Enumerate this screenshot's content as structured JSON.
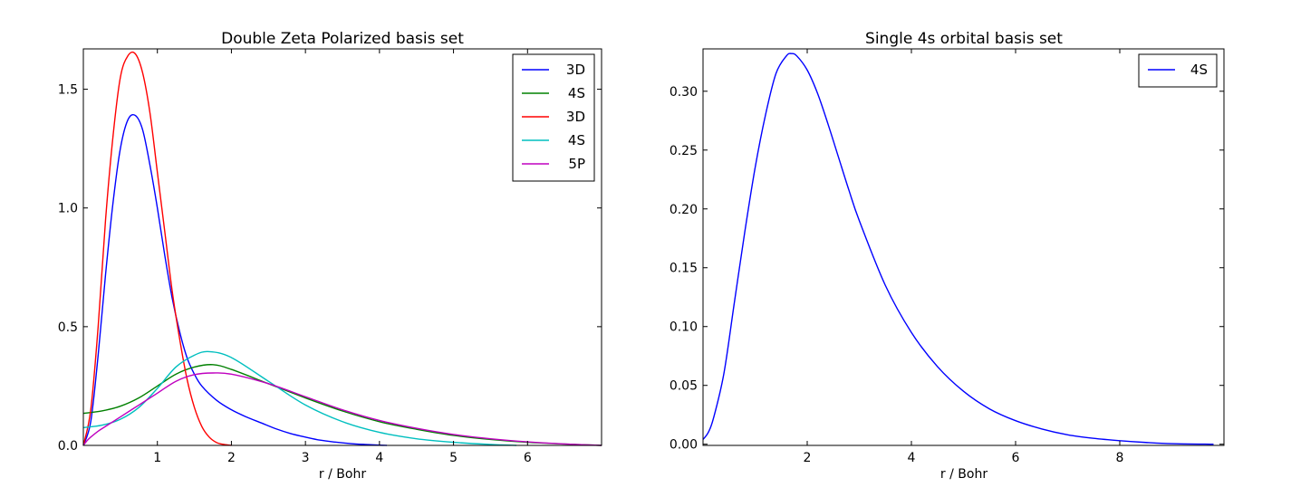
{
  "chart_data": [
    {
      "type": "line",
      "title": "Double Zeta Polarized basis set",
      "xlabel": "r / Bohr",
      "ylabel": "",
      "xlim": [
        0,
        7
      ],
      "ylim": [
        0,
        1.67
      ],
      "xticks": [
        1,
        2,
        3,
        4,
        5,
        6
      ],
      "xtick_labels": [
        "1",
        "2",
        "3",
        "4",
        "5",
        "6"
      ],
      "yticks": [
        0.0,
        0.5,
        1.0,
        1.5
      ],
      "ytick_labels": [
        "0.0",
        "0.5",
        "1.0",
        "1.5"
      ],
      "legend_position": "top-right",
      "series": [
        {
          "name": "3D",
          "color": "#0000ff",
          "x": [
            0,
            0.1,
            0.2,
            0.3,
            0.4,
            0.5,
            0.6,
            0.7,
            0.8,
            0.9,
            1.0,
            1.1,
            1.2,
            1.3,
            1.4,
            1.5,
            1.6,
            1.8,
            2.0,
            2.2,
            2.4,
            2.6,
            2.8,
            3.0,
            3.2,
            3.4,
            3.6,
            3.8,
            4.0,
            4.1
          ],
          "y": [
            0,
            0.1,
            0.38,
            0.72,
            1.02,
            1.25,
            1.37,
            1.39,
            1.33,
            1.18,
            1.0,
            0.8,
            0.62,
            0.48,
            0.37,
            0.3,
            0.25,
            0.19,
            0.15,
            0.12,
            0.095,
            0.07,
            0.05,
            0.035,
            0.022,
            0.014,
            0.008,
            0.004,
            0.001,
            0.0
          ]
        },
        {
          "name": "4S",
          "color": "#008000",
          "x": [
            0,
            0.25,
            0.5,
            0.75,
            1.0,
            1.25,
            1.5,
            1.75,
            2.0,
            2.5,
            3.0,
            3.5,
            4.0,
            4.5,
            5.0,
            5.5,
            6.0,
            6.5,
            7.0
          ],
          "y": [
            0.135,
            0.145,
            0.165,
            0.2,
            0.25,
            0.3,
            0.33,
            0.34,
            0.32,
            0.26,
            0.2,
            0.145,
            0.1,
            0.068,
            0.042,
            0.025,
            0.013,
            0.006,
            0.0
          ]
        },
        {
          "name": "3D",
          "color": "#ff0000",
          "x": [
            0,
            0.1,
            0.2,
            0.3,
            0.4,
            0.5,
            0.6,
            0.7,
            0.8,
            0.9,
            1.0,
            1.1,
            1.2,
            1.3,
            1.4,
            1.5,
            1.6,
            1.7,
            1.8,
            1.9,
            2.0
          ],
          "y": [
            0,
            0.15,
            0.5,
            0.95,
            1.3,
            1.55,
            1.64,
            1.65,
            1.57,
            1.4,
            1.15,
            0.9,
            0.65,
            0.45,
            0.28,
            0.16,
            0.08,
            0.035,
            0.012,
            0.004,
            0.0
          ]
        },
        {
          "name": "4S",
          "color": "#00bfbf",
          "x": [
            0,
            0.25,
            0.5,
            0.75,
            1.0,
            1.25,
            1.5,
            1.7,
            2.0,
            2.5,
            3.0,
            3.5,
            4.0,
            4.5,
            5.0,
            5.5,
            5.85
          ],
          "y": [
            0.075,
            0.085,
            0.11,
            0.16,
            0.24,
            0.33,
            0.38,
            0.395,
            0.37,
            0.27,
            0.17,
            0.1,
            0.055,
            0.028,
            0.013,
            0.004,
            0.0
          ]
        },
        {
          "name": "5P",
          "color": "#bf00bf",
          "x": [
            0,
            0.05,
            0.1,
            0.2,
            0.3,
            0.5,
            0.75,
            1.0,
            1.25,
            1.5,
            1.75,
            2.0,
            2.5,
            3.0,
            3.5,
            4.0,
            4.5,
            5.0,
            5.5,
            6.0,
            6.5,
            7.0
          ],
          "y": [
            0,
            0.02,
            0.035,
            0.06,
            0.08,
            0.12,
            0.17,
            0.22,
            0.27,
            0.298,
            0.305,
            0.3,
            0.26,
            0.205,
            0.15,
            0.105,
            0.072,
            0.046,
            0.028,
            0.015,
            0.006,
            0.0
          ]
        }
      ]
    },
    {
      "type": "line",
      "title": "Single 4s orbital basis set",
      "xlabel": "r / Bohr",
      "ylabel": "",
      "xlim": [
        0,
        10
      ],
      "ylim": [
        -0.001,
        0.336
      ],
      "xticks": [
        2,
        4,
        6,
        8
      ],
      "xtick_labels": [
        "2",
        "4",
        "6",
        "8"
      ],
      "yticks": [
        0.0,
        0.05,
        0.1,
        0.15,
        0.2,
        0.25,
        0.3
      ],
      "ytick_labels": [
        "0.00",
        "0.05",
        "0.10",
        "0.15",
        "0.20",
        "0.25",
        "0.30"
      ],
      "legend_position": "top-right",
      "series": [
        {
          "name": "4S",
          "color": "#0000ff",
          "x": [
            0,
            0.1,
            0.2,
            0.4,
            0.6,
            0.8,
            1.0,
            1.2,
            1.4,
            1.6,
            1.7,
            1.8,
            2.0,
            2.2,
            2.4,
            2.6,
            2.8,
            3.0,
            3.5,
            4.0,
            4.5,
            5.0,
            5.5,
            6.0,
            6.5,
            7.0,
            7.5,
            8.0,
            8.5,
            9.0,
            9.8
          ],
          "y": [
            0.004,
            0.01,
            0.022,
            0.06,
            0.12,
            0.18,
            0.235,
            0.28,
            0.315,
            0.33,
            0.332,
            0.33,
            0.318,
            0.298,
            0.272,
            0.244,
            0.216,
            0.19,
            0.135,
            0.095,
            0.066,
            0.045,
            0.03,
            0.02,
            0.013,
            0.008,
            0.005,
            0.003,
            0.0015,
            0.0005,
            0.0
          ]
        }
      ]
    }
  ]
}
